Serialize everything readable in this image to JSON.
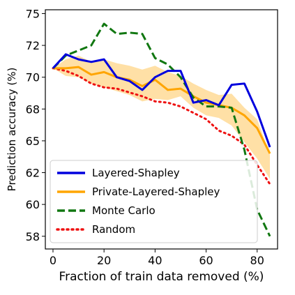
{
  "chart_data": {
    "type": "line",
    "xlabel": "Fraction of train data removed (%)",
    "ylabel": "Prediction accuracy (%)",
    "xlim": [
      -3,
      88
    ],
    "ylim": [
      56.5,
      75.3
    ],
    "xticks": [
      0,
      20,
      40,
      60,
      80
    ],
    "yticks": [
      57.5,
      60.0,
      62.5,
      65.0,
      67.5,
      70.0,
      72.5,
      75.0
    ],
    "ytick_labels": [
      "58",
      "60",
      "62",
      "65",
      "68",
      "70",
      "72",
      "75"
    ],
    "grid": false,
    "legend_position": "lower-left",
    "x": [
      0,
      5,
      10,
      15,
      20,
      25,
      30,
      35,
      40,
      45,
      50,
      55,
      60,
      65,
      70,
      75,
      80,
      85
    ],
    "series": [
      {
        "name": "Layered-Shapley",
        "color": "#0000dd",
        "style": "solid",
        "values": [
          70.7,
          71.8,
          71.4,
          71.2,
          71.4,
          70.0,
          69.7,
          69.0,
          70.0,
          70.5,
          70.5,
          68.0,
          68.2,
          67.8,
          69.4,
          69.5,
          67.3,
          64.5
        ]
      },
      {
        "name": "Private-Layered-Shapley",
        "color": "#ffa500",
        "style": "solid",
        "band": true,
        "values": [
          70.7,
          70.7,
          70.8,
          70.2,
          70.4,
          70.0,
          69.8,
          69.3,
          69.8,
          69.0,
          69.1,
          68.5,
          68.0,
          67.8,
          67.6,
          67.0,
          66.0,
          64.0
        ],
        "lower": [
          70.7,
          70.1,
          70.0,
          69.5,
          69.2,
          68.9,
          68.6,
          68.1,
          68.3,
          68.2,
          68.5,
          67.6,
          67.0,
          66.8,
          66.2,
          64.9,
          63.6,
          62.0
        ],
        "upper": [
          70.7,
          71.4,
          71.7,
          71.2,
          71.4,
          71.1,
          70.9,
          70.6,
          70.9,
          70.4,
          70.1,
          69.5,
          69.0,
          68.6,
          68.7,
          67.6,
          66.7,
          63.9
        ]
      },
      {
        "name": "Monte Carlo",
        "color": "#117711",
        "style": "dashed",
        "values": [
          70.7,
          71.7,
          72.1,
          72.5,
          74.2,
          73.4,
          73.5,
          73.4,
          71.5,
          71.0,
          70.0,
          68.4,
          67.7,
          67.7,
          67.6,
          64.3,
          59.6,
          57.5
        ]
      },
      {
        "name": "Random",
        "color": "#ee1111",
        "style": "dotted",
        "values": [
          70.7,
          70.5,
          70.1,
          69.5,
          69.2,
          69.1,
          68.8,
          68.5,
          68.1,
          68.0,
          67.7,
          67.2,
          66.7,
          65.8,
          65.4,
          64.7,
          63.1,
          61.6
        ]
      }
    ]
  }
}
